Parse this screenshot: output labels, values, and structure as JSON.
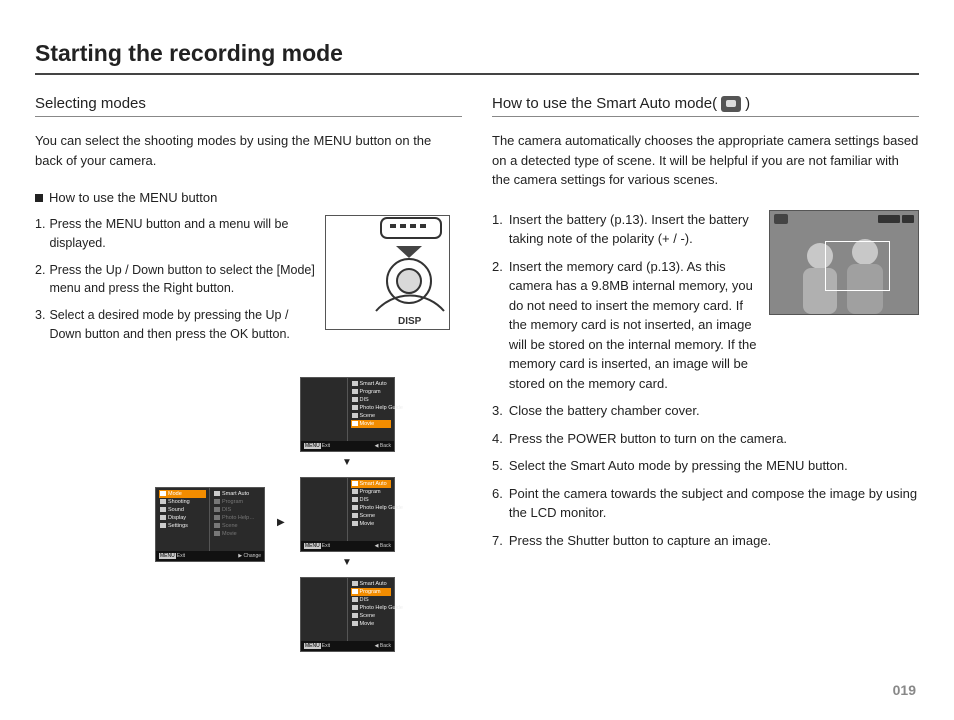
{
  "page": {
    "title": "Starting the recording mode",
    "number": "019"
  },
  "left": {
    "heading": "Selecting modes",
    "intro": "You can select the shooting modes by using the MENU button on the back of your camera.",
    "sub_heading": "How to use the MENU button",
    "steps": [
      {
        "n": "1.",
        "t": "Press the MENU button and a menu will be displayed."
      },
      {
        "n": "2.",
        "t": "Press the Up / Down button to select the [Mode] menu and press the Right button."
      },
      {
        "n": "3.",
        "t": "Select a desired mode by pressing the Up / Down button and then press the OK button."
      }
    ],
    "camera_labels": {
      "disp": "DISP"
    },
    "menu_main": {
      "left_items": [
        {
          "label": "Mode",
          "selected": true
        },
        {
          "label": "Shooting"
        },
        {
          "label": "Sound"
        },
        {
          "label": "Display"
        },
        {
          "label": "Settings"
        }
      ],
      "right_items": [
        {
          "label": "Smart Auto"
        },
        {
          "label": "Program",
          "dim": true
        },
        {
          "label": "DIS",
          "dim": true
        },
        {
          "label": "Photo Help…",
          "dim": true
        },
        {
          "label": "Scene",
          "dim": true
        },
        {
          "label": "Movie",
          "dim": true
        }
      ],
      "footer_left": "Exit",
      "footer_right": "Change"
    },
    "menu_steps": [
      {
        "items": [
          {
            "label": "Smart Auto"
          },
          {
            "label": "Program"
          },
          {
            "label": "DIS"
          },
          {
            "label": "Photo Help Guide"
          },
          {
            "label": "Scene"
          },
          {
            "label": "Movie",
            "selected": true
          }
        ],
        "footer_left": "Exit",
        "footer_right": "Back"
      },
      {
        "items": [
          {
            "label": "Smart Auto",
            "selected": true
          },
          {
            "label": "Program"
          },
          {
            "label": "DIS"
          },
          {
            "label": "Photo Help Guide"
          },
          {
            "label": "Scene"
          },
          {
            "label": "Movie"
          }
        ],
        "footer_left": "Exit",
        "footer_right": "Back"
      },
      {
        "items": [
          {
            "label": "Smart Auto"
          },
          {
            "label": "Program",
            "selected": true
          },
          {
            "label": "DIS"
          },
          {
            "label": "Photo Help Guide"
          },
          {
            "label": "Scene"
          },
          {
            "label": "Movie"
          }
        ],
        "footer_left": "Exit",
        "footer_right": "Back"
      }
    ]
  },
  "right": {
    "heading_prefix": "How to use the Smart Auto mode(",
    "heading_suffix": ")",
    "intro": "The camera automatically chooses the appropriate camera settings based on a detected type of scene. It will be helpful if you are not familiar with the camera settings for various scenes.",
    "steps": [
      {
        "n": "1.",
        "t": "Insert the battery (p.13). Insert the battery taking note of the polarity (+ / -)."
      },
      {
        "n": "2.",
        "t": "Insert the memory card (p.13). As this camera has a 9.8MB internal memory, you do not need to insert the memory card. If the memory card is not inserted, an image will be stored on the internal memory. If the memory card is inserted, an image will be stored on the memory card."
      },
      {
        "n": "3.",
        "t": "Close the battery chamber cover."
      },
      {
        "n": "4.",
        "t": "Press the POWER button to turn on the camera."
      },
      {
        "n": "5.",
        "t": "Select the Smart Auto mode by pressing the MENU button."
      },
      {
        "n": "6.",
        "t": "Point the camera towards the subject and compose the image by using the LCD monitor."
      },
      {
        "n": "7.",
        "t": "Press the Shutter button to capture an image."
      }
    ]
  },
  "footer": {
    "menu_btn_label": "MENU"
  }
}
